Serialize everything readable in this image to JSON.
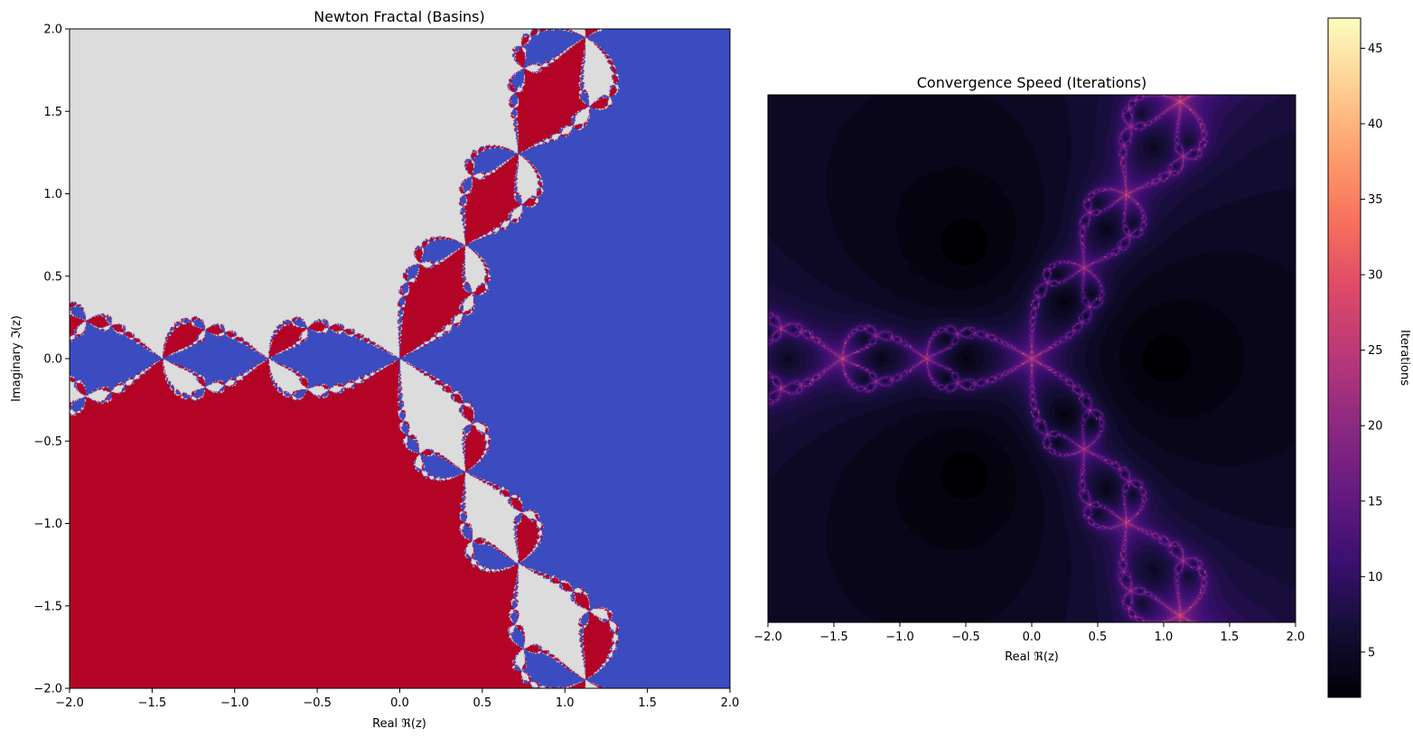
{
  "chart_data": [
    {
      "type": "heatmap",
      "title": "Newton Fractal (Basins)",
      "xlabel": "Real ℜ(z)",
      "ylabel": "Imaginary ℑ(z)",
      "xlim": [
        -2.0,
        2.0
      ],
      "ylim": [
        -2.0,
        2.0
      ],
      "xticks": [
        -2.0,
        -1.5,
        -1.0,
        -0.5,
        0.0,
        0.5,
        1.0,
        1.5,
        2.0
      ],
      "yticks": [
        -2.0,
        -1.5,
        -1.0,
        -0.5,
        0.0,
        0.5,
        1.0,
        1.5,
        2.0
      ],
      "xtick_labels": [
        "−2.0",
        "−1.5",
        "−1.0",
        "−0.5",
        "0.0",
        "0.5",
        "1.0",
        "1.5",
        "2.0"
      ],
      "ytick_labels": [
        "−2.0",
        "−1.5",
        "−1.0",
        "−0.5",
        "0.0",
        "0.5",
        "1.0",
        "1.5",
        "2.0"
      ],
      "roots": [
        {
          "re": 1.0,
          "im": 0.0,
          "color": "#3b4cc0"
        },
        {
          "re": -0.5,
          "im": 0.866,
          "color": "#dddcdc"
        },
        {
          "re": -0.5,
          "im": -0.866,
          "color": "#b40426"
        }
      ],
      "grid": false
    },
    {
      "type": "heatmap",
      "title": "Convergence Speed (Iterations)",
      "xlabel": "Real ℜ(z)",
      "xlim": [
        -2.0,
        2.0
      ],
      "ylim": [
        -2.0,
        2.0
      ],
      "xticks": [
        -2.0,
        -1.5,
        -1.0,
        -0.5,
        0.0,
        0.5,
        1.0,
        1.5,
        2.0
      ],
      "xtick_labels": [
        "−2.0",
        "−1.5",
        "−1.0",
        "−0.5",
        "0.0",
        "0.5",
        "1.0",
        "1.5",
        "2.0"
      ],
      "colormap": "magma",
      "colorbar": {
        "label": "Iterations",
        "range": [
          2,
          47
        ],
        "ticks": [
          5,
          10,
          15,
          20,
          25,
          30,
          35,
          40,
          45
        ],
        "tick_labels": [
          "5",
          "10",
          "15",
          "20",
          "25",
          "30",
          "35",
          "40",
          "45"
        ]
      },
      "grid": false
    }
  ]
}
